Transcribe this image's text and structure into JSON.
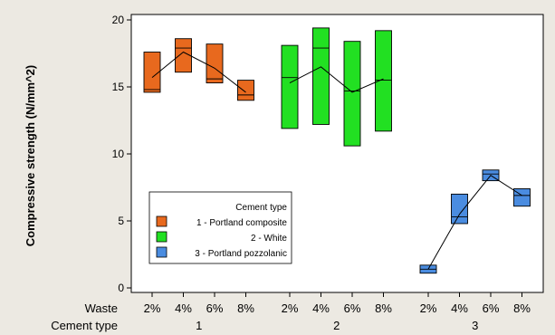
{
  "chart_data": {
    "type": "boxplot",
    "ylabel": "Compressive strength (N/mm^2)",
    "ylim": [
      0,
      20
    ],
    "yticks": [
      0,
      5,
      10,
      15,
      20
    ],
    "row_labels": [
      "Waste",
      "Cement type"
    ],
    "waste_levels": [
      "2%",
      "4%",
      "6%",
      "8%"
    ],
    "legend": {
      "title": "Cement type",
      "position": "inside-left",
      "entries": [
        {
          "label": "1 - Portland composite",
          "color": "#e8691e"
        },
        {
          "label": "2 - White",
          "color": "#22e022"
        },
        {
          "label": "3 - Portland pozzolanic",
          "color": "#4a8ce0"
        }
      ]
    },
    "groups": [
      {
        "label": "1",
        "color": "#e8691e",
        "boxes": [
          {
            "waste": "2%",
            "q1": 14.6,
            "median": 14.8,
            "q3": 17.6,
            "mean": 15.7
          },
          {
            "waste": "4%",
            "q1": 16.1,
            "median": 17.9,
            "q3": 18.6,
            "mean": 17.6
          },
          {
            "waste": "6%",
            "q1": 15.3,
            "median": 15.6,
            "q3": 18.2,
            "mean": 16.4
          },
          {
            "waste": "8%",
            "q1": 14.0,
            "median": 14.4,
            "q3": 15.5,
            "mean": 14.6
          }
        ]
      },
      {
        "label": "2",
        "color": "#22e022",
        "boxes": [
          {
            "waste": "2%",
            "q1": 11.9,
            "median": 15.7,
            "q3": 18.1,
            "mean": 15.3
          },
          {
            "waste": "4%",
            "q1": 12.2,
            "median": 17.9,
            "q3": 19.4,
            "mean": 16.5
          },
          {
            "waste": "6%",
            "q1": 10.6,
            "median": 14.7,
            "q3": 18.4,
            "mean": 14.6
          },
          {
            "waste": "8%",
            "q1": 11.7,
            "median": 15.5,
            "q3": 19.2,
            "mean": 15.6
          }
        ]
      },
      {
        "label": "3",
        "color": "#4a8ce0",
        "boxes": [
          {
            "waste": "2%",
            "q1": 1.1,
            "median": 1.4,
            "q3": 1.7,
            "mean": 1.4
          },
          {
            "waste": "4%",
            "q1": 4.8,
            "median": 5.3,
            "q3": 7.0,
            "mean": 5.5
          },
          {
            "waste": "6%",
            "q1": 8.0,
            "median": 8.5,
            "q3": 8.8,
            "mean": 8.4
          },
          {
            "waste": "8%",
            "q1": 6.1,
            "median": 6.9,
            "q3": 7.4,
            "mean": 6.9
          }
        ]
      }
    ]
  }
}
